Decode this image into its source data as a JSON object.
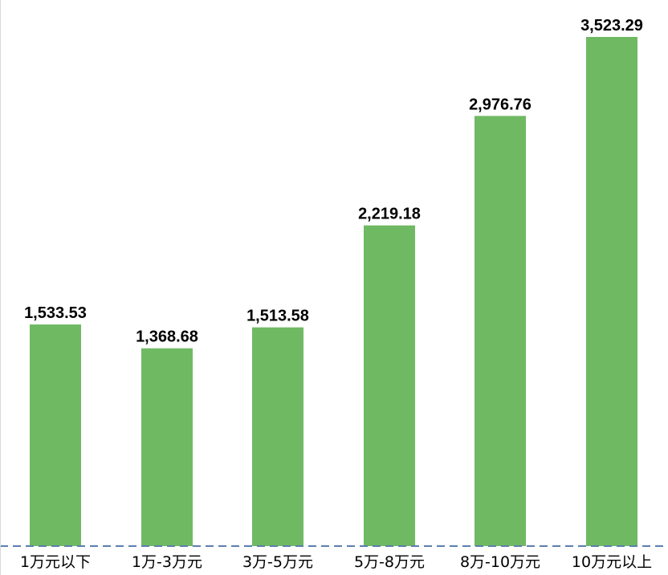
{
  "chart_data": {
    "type": "bar",
    "title": "",
    "xlabel": "",
    "ylabel": "",
    "categories": [
      "1万元以下",
      "1万-3万元",
      "3万-5万元",
      "5万-8万元",
      "8万-10万元",
      "10万元以上"
    ],
    "values": [
      1533.53,
      1368.68,
      1513.58,
      2219.18,
      2976.76,
      3523.29
    ],
    "value_labels": [
      "1,533.53",
      "1,368.68",
      "1,513.58",
      "2,219.18",
      "2,976.76",
      "3,523.29"
    ],
    "ylim": [
      0,
      3600
    ],
    "grid": false,
    "legend": "none",
    "colors": {
      "bar": "#70b963",
      "baseline": "#5b7fb0",
      "edge": "#d9d9d9"
    }
  }
}
